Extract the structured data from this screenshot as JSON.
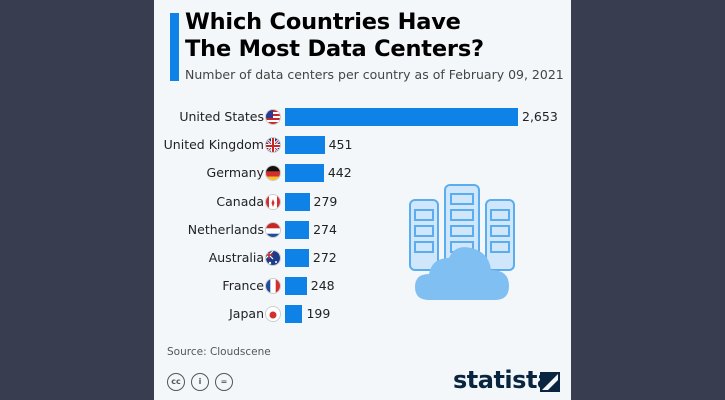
{
  "chart_data": {
    "type": "bar",
    "orientation": "horizontal",
    "title": "Which Countries Have The Most Data Centers?",
    "subtitle": "Number of data centers per country as of February 09, 2021",
    "categories": [
      "United States",
      "United Kingdom",
      "Germany",
      "Canada",
      "Netherlands",
      "Australia",
      "France",
      "Japan"
    ],
    "values": [
      2653,
      451,
      442,
      279,
      274,
      272,
      248,
      199
    ],
    "value_labels": [
      "2,653",
      "451",
      "442",
      "279",
      "274",
      "272",
      "248",
      "199"
    ],
    "flag_icons": [
      "us-flag-icon",
      "uk-flag-icon",
      "germany-flag-icon",
      "canada-flag-icon",
      "netherlands-flag-icon",
      "australia-flag-icon",
      "france-flag-icon",
      "japan-flag-icon"
    ],
    "bar_color": "#0e82e6",
    "xlim": [
      0,
      2653
    ]
  },
  "title_line1": "Which Countries Have",
  "title_line2": "The Most Data Centers?",
  "source": "Source: Cloudscene",
  "license_icons": [
    "cc-icon",
    "attribution-icon",
    "no-derivatives-icon"
  ],
  "license_glyphs": [
    "cc",
    "i",
    "="
  ],
  "brand": "statista"
}
